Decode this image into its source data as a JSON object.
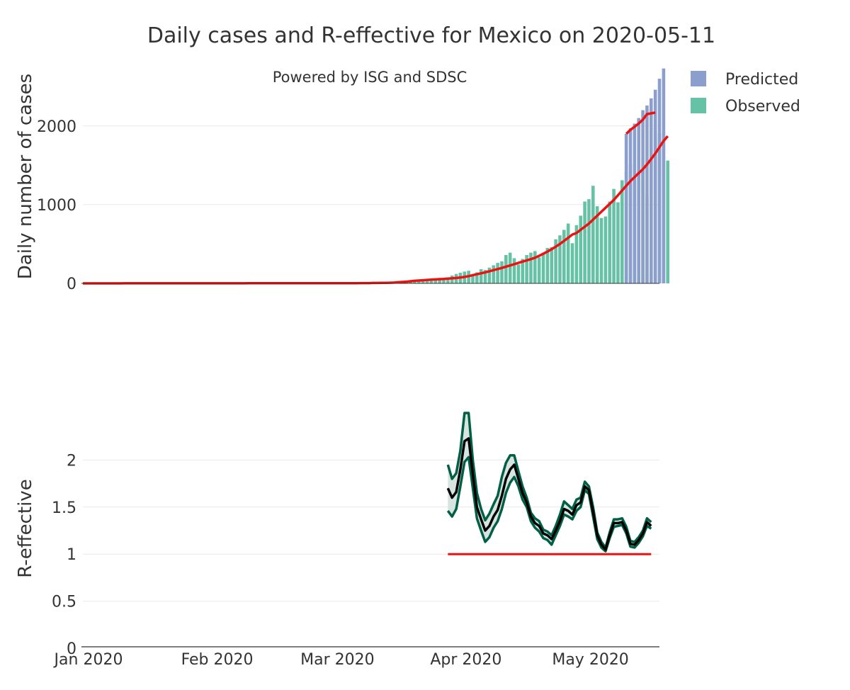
{
  "chart_data": {
    "title": "Daily cases and R-effective for Mexico on 2020-05-11",
    "subtitle": "Powered by ISG and SDSC",
    "colors": {
      "predicted": "#8c9fcc",
      "observed": "#66c2a5",
      "trend": "#ee1111",
      "r_line": "#000000",
      "r_band": "#005f45",
      "r_fill": "#d8e4df",
      "threshold": "#ee1111",
      "grid": "#e9e9e9",
      "axis": "#333333"
    },
    "x_axis": {
      "range": [
        "2020-01-01",
        "2020-05-19"
      ],
      "ticks": [
        {
          "date": "2020-01-01",
          "label": "Jan 2020"
        },
        {
          "date": "2020-02-01",
          "label": "Feb 2020"
        },
        {
          "date": "2020-03-01",
          "label": "Mar 2020"
        },
        {
          "date": "2020-04-01",
          "label": "Apr 2020"
        },
        {
          "date": "2020-05-01",
          "label": "May 2020"
        }
      ]
    },
    "top": {
      "type": "bar",
      "ylabel": "Daily number of cases",
      "ylim": [
        0,
        2700
      ],
      "yticks": [
        0,
        1000,
        2000
      ],
      "legend": [
        {
          "name": "Predicted",
          "color_key": "predicted"
        },
        {
          "name": "Observed",
          "color_key": "observed"
        }
      ],
      "observed": {
        "start": "2020-03-16",
        "values": [
          5,
          7,
          10,
          18,
          20,
          26,
          30,
          33,
          37,
          45,
          60,
          70,
          55,
          70,
          100,
          120,
          135,
          150,
          160,
          110,
          140,
          180,
          170,
          200,
          230,
          260,
          280,
          360,
          390,
          320,
          240,
          310,
          360,
          390,
          410,
          330,
          390,
          450,
          460,
          560,
          610,
          680,
          760,
          510,
          740,
          860,
          1040,
          1070,
          1240,
          980,
          830,
          850,
          1040,
          1200,
          1030,
          1310,
          1420,
          1510,
          1350,
          1370,
          1440,
          1110,
          1610,
          1980,
          1910,
          1940,
          1560
        ]
      },
      "predicted": {
        "start": "2020-05-11",
        "values": [
          1900,
          1970,
          2030,
          2100,
          2200,
          2260,
          2350,
          2460,
          2600,
          2730
        ]
      },
      "trend": {
        "start": "2020-01-01",
        "values": [
          0,
          0,
          0,
          0,
          0,
          0,
          0,
          0,
          0,
          0,
          1,
          1,
          1,
          1,
          1,
          1,
          1,
          1,
          1,
          1,
          1,
          1,
          1,
          1,
          1,
          1,
          1,
          1,
          1,
          1,
          1,
          1,
          1,
          1,
          1,
          1,
          1,
          1,
          1,
          1,
          2,
          2,
          2,
          2,
          2,
          2,
          2,
          2,
          2,
          2,
          2,
          2,
          2,
          2,
          2,
          2,
          2,
          2,
          2,
          2,
          3,
          3,
          3,
          3,
          3,
          3,
          3,
          4,
          4,
          4,
          5,
          5,
          6,
          7,
          8,
          10,
          14,
          18,
          22,
          27,
          32,
          36,
          40,
          44,
          47,
          50,
          53,
          56,
          60,
          64,
          68,
          74,
          82,
          92,
          104,
          116,
          128,
          140,
          154,
          168,
          182,
          196,
          212,
          228,
          244,
          260,
          276,
          292,
          308,
          326,
          350,
          376,
          404,
          434,
          466,
          500,
          540,
          580,
          620,
          640,
          680,
          720,
          760,
          810,
          860,
          910,
          960,
          1010,
          1060,
          1120,
          1180,
          1240,
          1300,
          1350,
          1400,
          1450,
          1510,
          1580,
          1650,
          1730,
          1810,
          1870
        ]
      },
      "trend_forecast": {
        "start": "2020-05-11",
        "values": [
          1900,
          1950,
          1990,
          2030,
          2080,
          2150,
          2160,
          2170
        ]
      }
    },
    "bottom": {
      "type": "line",
      "ylabel": "R-effective",
      "ylim": [
        0,
        2.5
      ],
      "yticks": [
        {
          "value": 0,
          "label": "0"
        },
        {
          "value": 0.5,
          "label": "0.5"
        },
        {
          "value": 1,
          "label": "1"
        },
        {
          "value": 1.5,
          "label": "1.5"
        },
        {
          "value": 2,
          "label": "2"
        }
      ],
      "start": "2020-03-29",
      "median": [
        1.7,
        1.6,
        1.66,
        1.9,
        2.2,
        2.23,
        1.85,
        1.5,
        1.37,
        1.25,
        1.3,
        1.4,
        1.47,
        1.62,
        1.8,
        1.9,
        1.95,
        1.8,
        1.65,
        1.55,
        1.4,
        1.33,
        1.3,
        1.22,
        1.2,
        1.16,
        1.25,
        1.35,
        1.48,
        1.46,
        1.42,
        1.52,
        1.55,
        1.72,
        1.68,
        1.45,
        1.2,
        1.1,
        1.05,
        1.2,
        1.33,
        1.33,
        1.34,
        1.25,
        1.11,
        1.1,
        1.15,
        1.22,
        1.34,
        1.3
      ],
      "upper": [
        1.95,
        1.8,
        1.86,
        2.1,
        2.5,
        2.5,
        2.0,
        1.65,
        1.48,
        1.36,
        1.43,
        1.53,
        1.62,
        1.82,
        1.97,
        2.05,
        2.05,
        1.88,
        1.72,
        1.6,
        1.44,
        1.38,
        1.35,
        1.26,
        1.24,
        1.2,
        1.3,
        1.42,
        1.56,
        1.52,
        1.48,
        1.58,
        1.6,
        1.77,
        1.72,
        1.5,
        1.23,
        1.13,
        1.07,
        1.23,
        1.37,
        1.37,
        1.38,
        1.29,
        1.14,
        1.13,
        1.18,
        1.25,
        1.38,
        1.34
      ],
      "lower": [
        1.46,
        1.4,
        1.48,
        1.72,
        1.98,
        2.03,
        1.7,
        1.38,
        1.25,
        1.13,
        1.18,
        1.28,
        1.35,
        1.48,
        1.65,
        1.76,
        1.82,
        1.72,
        1.58,
        1.5,
        1.35,
        1.28,
        1.24,
        1.17,
        1.15,
        1.1,
        1.2,
        1.3,
        1.42,
        1.4,
        1.37,
        1.46,
        1.5,
        1.68,
        1.64,
        1.4,
        1.16,
        1.07,
        1.03,
        1.17,
        1.29,
        1.3,
        1.31,
        1.22,
        1.08,
        1.07,
        1.12,
        1.19,
        1.3,
        1.27
      ],
      "threshold": {
        "value": 1,
        "from": "2020-03-29",
        "to": "2020-05-17"
      }
    }
  }
}
